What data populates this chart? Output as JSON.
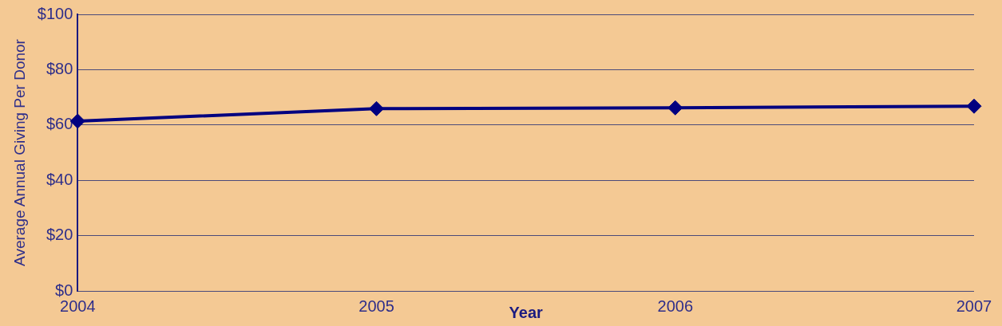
{
  "chart_data": {
    "type": "line",
    "xlabel": "Year",
    "ylabel": "Average Annual Giving Per Donor",
    "categories": [
      "2004",
      "2005",
      "2006",
      "2007"
    ],
    "series": [
      {
        "color": "#000080",
        "values": [
          61.4,
          65.9,
          66.2,
          66.8
        ]
      }
    ],
    "ylim": [
      0,
      100
    ],
    "yticks": [
      {
        "value": 0,
        "label": "$0"
      },
      {
        "value": 20,
        "label": "$20"
      },
      {
        "value": 40,
        "label": "$40"
      },
      {
        "value": 60,
        "label": "$60"
      },
      {
        "value": 80,
        "label": "$80"
      },
      {
        "value": 100,
        "label": "$100"
      }
    ],
    "grid": "y",
    "legend": false,
    "marker": "diamond",
    "line_style": "solid"
  }
}
